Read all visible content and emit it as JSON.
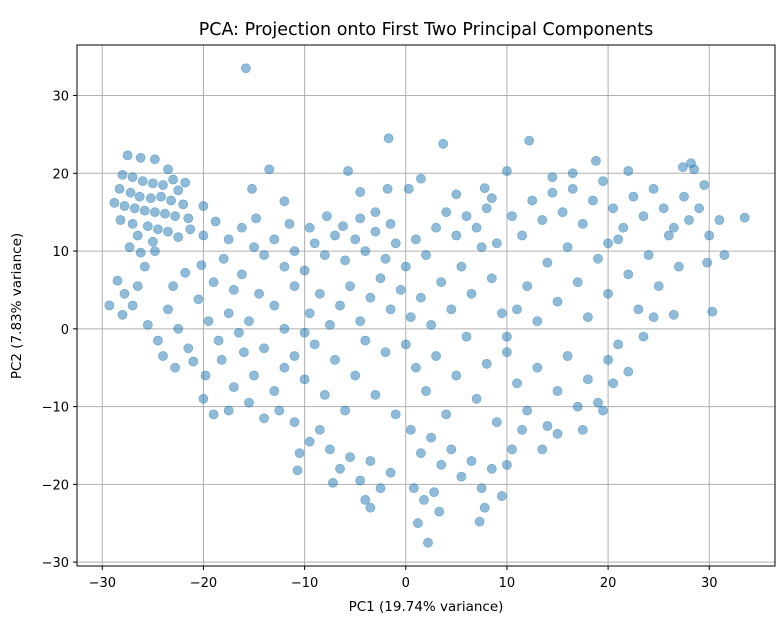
{
  "chart_data": {
    "type": "scatter",
    "title": "PCA: Projection onto First Two Principal Components",
    "xlabel": "PC1 (19.74% variance)",
    "ylabel": "PC2 (7.83% variance)",
    "xlim": [
      -32.5,
      36.5
    ],
    "ylim": [
      -30.5,
      36.5
    ],
    "xticks": [
      -30,
      -20,
      -10,
      0,
      10,
      20,
      30
    ],
    "yticks": [
      -30,
      -20,
      -10,
      0,
      10,
      20,
      30
    ],
    "xtick_labels": [
      "−30",
      "−20",
      "−10",
      "0",
      "10",
      "20",
      "30"
    ],
    "ytick_labels": [
      "−30",
      "−20",
      "−10",
      "0",
      "10",
      "20",
      "30"
    ],
    "grid": true,
    "marker_color": "#1f77b4",
    "marker_alpha": 0.5,
    "points": [
      [
        -15.8,
        33.5
      ],
      [
        -1.7,
        24.5
      ],
      [
        12.2,
        24.2
      ],
      [
        3.7,
        23.8
      ],
      [
        -13.5,
        20.5
      ],
      [
        -5.7,
        20.3
      ],
      [
        10.0,
        20.3
      ],
      [
        -15.2,
        18.0
      ],
      [
        -12.0,
        16.4
      ],
      [
        -4.5,
        17.6
      ],
      [
        -1.8,
        18.0
      ],
      [
        0.3,
        18.0
      ],
      [
        1.5,
        19.3
      ],
      [
        5.0,
        17.3
      ],
      [
        7.8,
        18.1
      ],
      [
        8.5,
        16.8
      ],
      [
        -27.5,
        22.3
      ],
      [
        -26.2,
        22.0
      ],
      [
        -24.8,
        21.8
      ],
      [
        -23.5,
        20.5
      ],
      [
        -28.0,
        19.8
      ],
      [
        -27.0,
        19.5
      ],
      [
        -26.0,
        19.0
      ],
      [
        -25.0,
        18.7
      ],
      [
        -24.0,
        18.5
      ],
      [
        -23.0,
        19.2
      ],
      [
        -22.5,
        17.8
      ],
      [
        -28.3,
        18.0
      ],
      [
        -27.2,
        17.5
      ],
      [
        -26.3,
        17.0
      ],
      [
        -25.2,
        16.8
      ],
      [
        -24.2,
        17.0
      ],
      [
        -23.2,
        16.5
      ],
      [
        -22.0,
        16.0
      ],
      [
        -28.8,
        16.2
      ],
      [
        -27.8,
        15.8
      ],
      [
        -26.8,
        15.5
      ],
      [
        -25.8,
        15.2
      ],
      [
        -24.8,
        15.0
      ],
      [
        -23.8,
        14.8
      ],
      [
        -22.8,
        14.5
      ],
      [
        -21.5,
        14.2
      ],
      [
        -28.2,
        14.0
      ],
      [
        -27.0,
        13.5
      ],
      [
        -25.5,
        13.2
      ],
      [
        -24.5,
        12.8
      ],
      [
        -23.5,
        12.5
      ],
      [
        -26.5,
        12.0
      ],
      [
        -25.0,
        11.2
      ],
      [
        -22.5,
        11.8
      ],
      [
        -29.3,
        3.0
      ],
      [
        -28.5,
        6.2
      ],
      [
        -27.8,
        4.5
      ],
      [
        -28.0,
        1.8
      ],
      [
        -27.0,
        3.0
      ],
      [
        -26.5,
        5.5
      ],
      [
        -25.8,
        8.0
      ],
      [
        -26.2,
        9.8
      ],
      [
        -24.8,
        10.0
      ],
      [
        -27.3,
        10.5
      ],
      [
        -21.8,
        18.8
      ],
      [
        -21.3,
        12.8
      ],
      [
        -20.0,
        15.8
      ],
      [
        -25.5,
        0.5
      ],
      [
        -24.5,
        -1.5
      ],
      [
        -23.5,
        2.5
      ],
      [
        -22.5,
        0.0
      ],
      [
        -21.5,
        -2.5
      ],
      [
        -20.5,
        3.8
      ],
      [
        -19.5,
        1.0
      ],
      [
        -18.5,
        -1.5
      ],
      [
        -17.5,
        2.0
      ],
      [
        -24.0,
        -3.5
      ],
      [
        -22.8,
        -5.0
      ],
      [
        -21.0,
        -4.2
      ],
      [
        -19.8,
        -6.0
      ],
      [
        -18.2,
        -4.0
      ],
      [
        -17.0,
        -7.5
      ],
      [
        -16.0,
        -3.0
      ],
      [
        -15.0,
        -6.0
      ],
      [
        -14.0,
        -2.5
      ],
      [
        -13.0,
        -8.0
      ],
      [
        -12.0,
        -5.0
      ],
      [
        -23.0,
        5.5
      ],
      [
        -21.8,
        7.2
      ],
      [
        -20.2,
        8.2
      ],
      [
        -19.0,
        6.0
      ],
      [
        -18.0,
        9.0
      ],
      [
        -17.0,
        5.0
      ],
      [
        -16.2,
        7.0
      ],
      [
        -15.0,
        10.5
      ],
      [
        -14.0,
        9.5
      ],
      [
        -13.0,
        11.5
      ],
      [
        -12.0,
        8.0
      ],
      [
        -11.0,
        10.0
      ],
      [
        -10.0,
        7.5
      ],
      [
        -9.0,
        11.0
      ],
      [
        -8.0,
        9.5
      ],
      [
        -7.0,
        12.0
      ],
      [
        -6.0,
        8.8
      ],
      [
        -5.0,
        11.5
      ],
      [
        -4.0,
        10.0
      ],
      [
        -3.0,
        12.5
      ],
      [
        -2.0,
        9.0
      ],
      [
        -1.0,
        11.0
      ],
      [
        -20.0,
        12.0
      ],
      [
        -18.8,
        13.8
      ],
      [
        -17.5,
        11.5
      ],
      [
        -16.2,
        13.0
      ],
      [
        -14.8,
        14.2
      ],
      [
        -11.5,
        13.5
      ],
      [
        -9.5,
        13.0
      ],
      [
        -7.8,
        14.5
      ],
      [
        -6.2,
        13.2
      ],
      [
        -4.5,
        14.2
      ],
      [
        -3.0,
        15.0
      ],
      [
        -1.5,
        13.5
      ],
      [
        -20.0,
        -9.0
      ],
      [
        -19.0,
        -11.0
      ],
      [
        -17.5,
        -10.5
      ],
      [
        -15.5,
        -9.5
      ],
      [
        -14.0,
        -11.5
      ],
      [
        -12.5,
        -10.5
      ],
      [
        -11.0,
        -12.0
      ],
      [
        -10.5,
        -16.0
      ],
      [
        -9.5,
        -14.5
      ],
      [
        -8.5,
        -13.0
      ],
      [
        -7.5,
        -15.5
      ],
      [
        -6.5,
        -18.0
      ],
      [
        -5.5,
        -16.5
      ],
      [
        -4.5,
        -19.5
      ],
      [
        -3.5,
        -17.0
      ],
      [
        -2.5,
        -20.5
      ],
      [
        -1.5,
        -18.5
      ],
      [
        -10.7,
        -18.2
      ],
      [
        -7.2,
        -19.8
      ],
      [
        -4.0,
        -22.0
      ],
      [
        -3.5,
        -23.0
      ],
      [
        -11.0,
        -3.5
      ],
      [
        -10.0,
        -6.5
      ],
      [
        -9.0,
        -2.0
      ],
      [
        -8.0,
        -8.5
      ],
      [
        -7.0,
        -4.0
      ],
      [
        -6.0,
        -10.5
      ],
      [
        -5.0,
        -6.0
      ],
      [
        -4.0,
        -1.5
      ],
      [
        -3.0,
        -8.5
      ],
      [
        -2.0,
        -3.0
      ],
      [
        -1.0,
        -11.0
      ],
      [
        -9.5,
        2.0
      ],
      [
        -8.5,
        4.5
      ],
      [
        -7.5,
        0.5
      ],
      [
        -6.5,
        3.0
      ],
      [
        -5.5,
        5.5
      ],
      [
        -4.5,
        1.0
      ],
      [
        -3.5,
        4.0
      ],
      [
        -2.5,
        6.5
      ],
      [
        -1.5,
        2.5
      ],
      [
        -0.5,
        5.0
      ],
      [
        -13.0,
        3.0
      ],
      [
        -12.0,
        0.0
      ],
      [
        -11.0,
        5.5
      ],
      [
        -10.0,
        -0.5
      ],
      [
        -15.5,
        1.0
      ],
      [
        -14.5,
        4.5
      ],
      [
        -16.5,
        -0.5
      ],
      [
        0.0,
        -2.0
      ],
      [
        1.0,
        -5.0
      ],
      [
        2.0,
        -8.0
      ],
      [
        3.0,
        -3.5
      ],
      [
        4.0,
        -11.0
      ],
      [
        5.0,
        -6.0
      ],
      [
        6.0,
        -1.0
      ],
      [
        7.0,
        -9.0
      ],
      [
        8.0,
        -4.5
      ],
      [
        9.0,
        -12.0
      ],
      [
        0.5,
        -13.0
      ],
      [
        1.5,
        -16.0
      ],
      [
        2.5,
        -14.0
      ],
      [
        3.5,
        -17.5
      ],
      [
        4.5,
        -15.5
      ],
      [
        5.5,
        -19.0
      ],
      [
        6.5,
        -17.0
      ],
      [
        7.5,
        -20.5
      ],
      [
        8.5,
        -18.0
      ],
      [
        9.5,
        -21.5
      ],
      [
        0.8,
        -20.5
      ],
      [
        1.8,
        -22.0
      ],
      [
        2.8,
        -21.0
      ],
      [
        1.2,
        -25.0
      ],
      [
        2.2,
        -27.5
      ],
      [
        3.3,
        -23.5
      ],
      [
        7.3,
        -24.8
      ],
      [
        7.8,
        -23.0
      ],
      [
        0.5,
        1.5
      ],
      [
        1.5,
        4.0
      ],
      [
        2.5,
        0.5
      ],
      [
        3.5,
        6.0
      ],
      [
        4.5,
        2.5
      ],
      [
        5.5,
        8.0
      ],
      [
        6.5,
        4.5
      ],
      [
        7.5,
        10.5
      ],
      [
        8.5,
        6.5
      ],
      [
        9.5,
        2.0
      ],
      [
        0.0,
        8.0
      ],
      [
        1.0,
        11.5
      ],
      [
        2.0,
        9.5
      ],
      [
        3.0,
        13.0
      ],
      [
        4.0,
        15.0
      ],
      [
        5.0,
        12.0
      ],
      [
        6.0,
        14.5
      ],
      [
        7.0,
        13.0
      ],
      [
        8.0,
        15.5
      ],
      [
        9.0,
        11.0
      ],
      [
        10.0,
        -3.0
      ],
      [
        11.0,
        -7.0
      ],
      [
        12.0,
        -10.5
      ],
      [
        13.0,
        -5.0
      ],
      [
        14.0,
        -12.5
      ],
      [
        15.0,
        -8.0
      ],
      [
        16.0,
        -3.5
      ],
      [
        17.0,
        -10.0
      ],
      [
        18.0,
        -6.5
      ],
      [
        19.0,
        -9.5
      ],
      [
        20.0,
        -4.0
      ],
      [
        21.0,
        -2.0
      ],
      [
        22.0,
        -5.5
      ],
      [
        19.5,
        -10.5
      ],
      [
        17.5,
        -13.0
      ],
      [
        10.5,
        -15.5
      ],
      [
        11.5,
        -13.0
      ],
      [
        10.0,
        -1.0
      ],
      [
        11.0,
        2.5
      ],
      [
        12.0,
        5.5
      ],
      [
        13.0,
        1.0
      ],
      [
        14.0,
        8.5
      ],
      [
        15.0,
        3.5
      ],
      [
        16.0,
        10.5
      ],
      [
        17.0,
        6.0
      ],
      [
        18.0,
        1.5
      ],
      [
        19.0,
        9.0
      ],
      [
        20.0,
        4.5
      ],
      [
        21.0,
        11.5
      ],
      [
        22.0,
        7.0
      ],
      [
        23.0,
        2.5
      ],
      [
        24.0,
        9.5
      ],
      [
        25.0,
        5.5
      ],
      [
        26.0,
        12.0
      ],
      [
        27.0,
        8.0
      ],
      [
        28.0,
        14.0
      ],
      [
        10.5,
        14.5
      ],
      [
        11.5,
        12.0
      ],
      [
        12.5,
        16.5
      ],
      [
        13.5,
        14.0
      ],
      [
        14.5,
        17.5
      ],
      [
        15.5,
        15.0
      ],
      [
        16.5,
        18.0
      ],
      [
        17.5,
        13.5
      ],
      [
        18.5,
        16.5
      ],
      [
        19.5,
        19.0
      ],
      [
        20.5,
        15.5
      ],
      [
        21.5,
        13.0
      ],
      [
        22.5,
        17.0
      ],
      [
        23.5,
        14.5
      ],
      [
        24.5,
        18.0
      ],
      [
        25.5,
        15.5
      ],
      [
        26.5,
        13.0
      ],
      [
        27.5,
        17.0
      ],
      [
        28.5,
        20.5
      ],
      [
        29.5,
        18.5
      ],
      [
        29.0,
        15.5
      ],
      [
        30.0,
        12.0
      ],
      [
        31.0,
        14.0
      ],
      [
        31.5,
        9.5
      ],
      [
        29.8,
        8.5
      ],
      [
        33.5,
        14.3
      ],
      [
        28.2,
        21.3
      ],
      [
        27.4,
        20.8
      ],
      [
        18.8,
        21.6
      ],
      [
        30.3,
        2.2
      ],
      [
        24.5,
        1.5
      ],
      [
        26.5,
        1.8
      ],
      [
        23.5,
        -1.0
      ],
      [
        20.5,
        -7.0
      ],
      [
        15.0,
        -13.5
      ],
      [
        13.5,
        -15.5
      ],
      [
        10.0,
        -17.5
      ],
      [
        16.5,
        20.0
      ],
      [
        14.5,
        19.5
      ],
      [
        22.0,
        20.3
      ],
      [
        20.0,
        11.0
      ]
    ]
  }
}
